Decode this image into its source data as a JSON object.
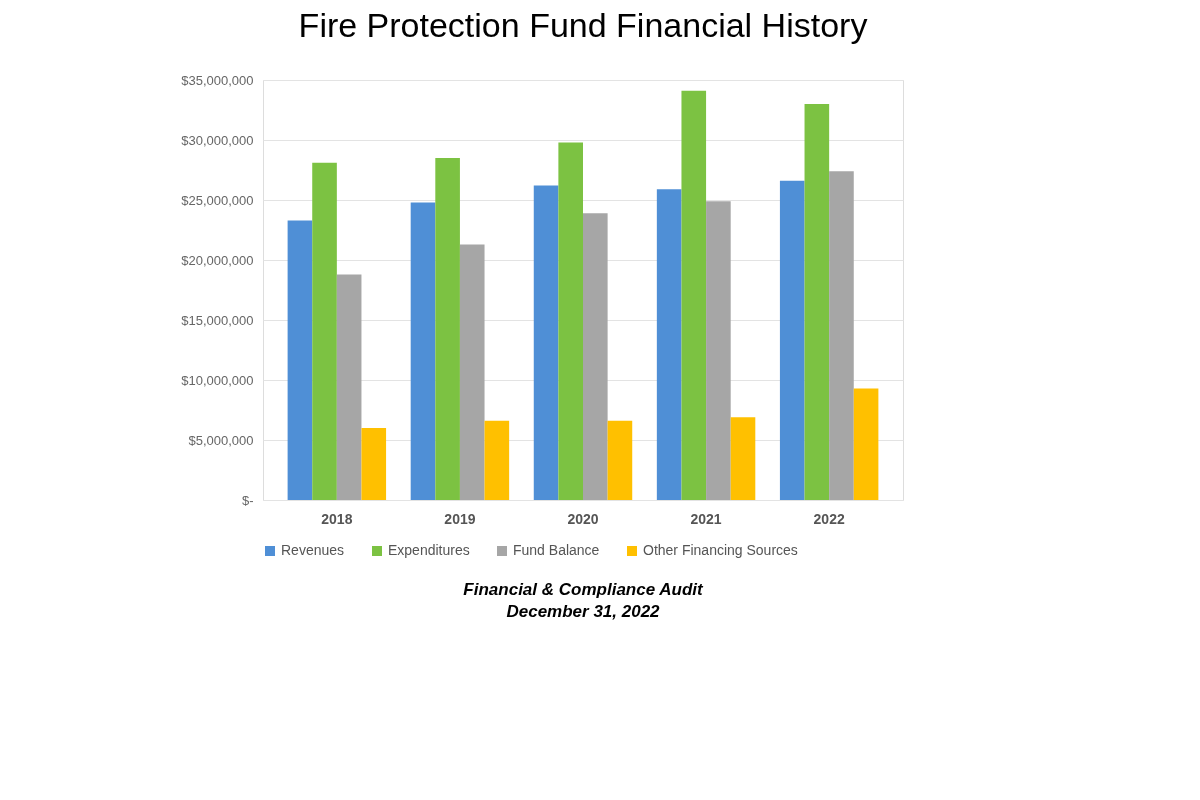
{
  "chart_data": {
    "type": "bar",
    "title": "Fire Protection Fund Financial History",
    "categories": [
      "2018",
      "2019",
      "2020",
      "2021",
      "2022"
    ],
    "series": [
      {
        "name": "Revenues",
        "color": "#4f8fd6",
        "values": [
          23300000,
          24800000,
          26200000,
          25900000,
          26600000
        ]
      },
      {
        "name": "Expenditures",
        "color": "#7cc242",
        "values": [
          28100000,
          28500000,
          29800000,
          34100000,
          33000000
        ]
      },
      {
        "name": "Fund Balance",
        "color": "#a6a6a6",
        "values": [
          18800000,
          21300000,
          23900000,
          24900000,
          27400000
        ]
      },
      {
        "name": "Other Financing Sources",
        "color": "#ffc000",
        "values": [
          6000000,
          6600000,
          6600000,
          6900000,
          9300000
        ]
      }
    ],
    "ylim": [
      0,
      35000000
    ],
    "yticks": [
      {
        "value": 0,
        "label": "$-"
      },
      {
        "value": 5000000,
        "label": "$5,000,000"
      },
      {
        "value": 10000000,
        "label": "$10,000,000"
      },
      {
        "value": 15000000,
        "label": "$15,000,000"
      },
      {
        "value": 20000000,
        "label": "$20,000,000"
      },
      {
        "value": 25000000,
        "label": "$25,000,000"
      },
      {
        "value": 30000000,
        "label": "$30,000,000"
      },
      {
        "value": 35000000,
        "label": "$35,000,000"
      }
    ],
    "grid": "y",
    "legend": "bottom",
    "annotations": [
      "Financial & Compliance Audit",
      "December 31, 2022"
    ]
  }
}
